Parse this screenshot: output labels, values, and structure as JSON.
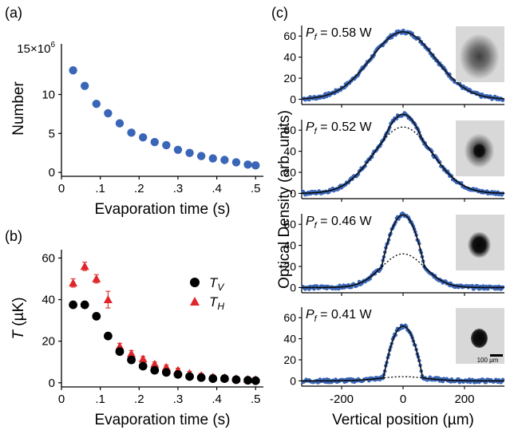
{
  "panel_labels": {
    "a": "(a)",
    "b": "(b)",
    "c": "(c)"
  },
  "colors": {
    "blue": "#3a66b8",
    "red": "#e0262a",
    "black": "#000000",
    "fit": "#111111",
    "image_bg": "#d8d8d8"
  },
  "chart_data": [
    {
      "id": "a",
      "type": "scatter",
      "xlabel": "Evaporation time (s)",
      "ylabel": "Number",
      "y_multiplier_label": "15×10",
      "y_multiplier_exp": "6",
      "xlim": [
        0,
        0.52
      ],
      "ylim": [
        -0.5,
        16.5
      ],
      "xticks": [
        0,
        0.1,
        0.2,
        0.3,
        0.4,
        0.5
      ],
      "xticklabels": [
        "0",
        ".1",
        ".2",
        ".3",
        ".4",
        ".5"
      ],
      "yticks": [
        0,
        5,
        10
      ],
      "yticklabels": [
        "0",
        "5",
        "10"
      ],
      "series": [
        {
          "color": "#3a66b8",
          "marker": "circle",
          "x": [
            0.03,
            0.06,
            0.09,
            0.12,
            0.15,
            0.18,
            0.21,
            0.24,
            0.27,
            0.3,
            0.33,
            0.36,
            0.39,
            0.42,
            0.45,
            0.48,
            0.5
          ],
          "y": [
            13.1,
            11.1,
            8.8,
            7.6,
            6.3,
            5.1,
            4.5,
            3.9,
            3.5,
            2.9,
            2.5,
            2.1,
            1.8,
            1.6,
            1.3,
            1.0,
            0.9
          ]
        }
      ]
    },
    {
      "id": "b",
      "type": "scatter",
      "xlabel": "Evaporation time (s)",
      "ylabel_main": "T",
      "ylabel_rest": " (µK)",
      "xlim": [
        0,
        0.52
      ],
      "ylim": [
        -2,
        64
      ],
      "xticks": [
        0,
        0.1,
        0.2,
        0.3,
        0.4,
        0.5
      ],
      "xticklabels": [
        "0",
        ".1",
        ".2",
        ".3",
        ".4",
        ".5"
      ],
      "yticks": [
        0,
        20,
        40,
        60
      ],
      "yticklabels": [
        "0",
        "20",
        "40",
        "60"
      ],
      "series": [
        {
          "name": "T",
          "sub": "V",
          "color": "#000000",
          "marker": "circle",
          "x": [
            0.03,
            0.06,
            0.09,
            0.12,
            0.15,
            0.18,
            0.21,
            0.24,
            0.27,
            0.3,
            0.33,
            0.36,
            0.39,
            0.42,
            0.45,
            0.48,
            0.5
          ],
          "y": [
            37.5,
            37.5,
            32,
            22.5,
            15,
            11,
            8,
            6,
            5,
            4,
            3,
            2.5,
            2,
            2,
            1.5,
            1.2,
            1
          ],
          "err": [
            0,
            0,
            0,
            0,
            0,
            0,
            0,
            0,
            0,
            0,
            0,
            0,
            0,
            0,
            0,
            0,
            0
          ]
        },
        {
          "name": "T",
          "sub": "H",
          "color": "#e0262a",
          "marker": "triangle",
          "x": [
            0.03,
            0.06,
            0.09,
            0.12,
            0.15,
            0.18,
            0.21,
            0.24,
            0.27,
            0.3,
            0.33,
            0.36,
            0.39,
            0.42,
            0.45,
            0.48,
            0.5
          ],
          "y": [
            48,
            56,
            50,
            40,
            17.5,
            14,
            11.5,
            9,
            7.5,
            6,
            4.5,
            3.5,
            2.8,
            2.5,
            2,
            1.6,
            1.5
          ],
          "err": [
            2,
            2,
            2,
            4,
            1.5,
            1.5,
            1.2,
            1,
            1,
            1,
            1,
            1,
            1,
            1,
            1,
            1,
            1
          ]
        }
      ]
    },
    {
      "id": "c",
      "type": "line",
      "xlabel": "Vertical position (µm)",
      "ylabel": "Optical Density (arb. units)",
      "xlim": [
        -330,
        330
      ],
      "ylim": [
        -5,
        70
      ],
      "xticks": [
        -200,
        0,
        200
      ],
      "xticklabels": [
        "-200",
        "0",
        "200"
      ],
      "yticks": [
        0,
        20,
        40,
        60
      ],
      "yticklabels": [
        "0",
        "20",
        "40",
        "60"
      ],
      "scalebar_label": "100 µm",
      "subpanels": [
        {
          "label_sym": "P",
          "label_sub": "f",
          "label_rest": " = 0.58 W",
          "peak": 64,
          "thermal_amp": 64,
          "thermal_sigma": 105,
          "bec_amp": 0,
          "bec_sigma": 40,
          "cloud_radius": 24,
          "cloud_core": 0
        },
        {
          "label_sym": "P",
          "label_sub": "f",
          "label_rest": " = 0.52 W",
          "peak": 75,
          "thermal_amp": 63,
          "thermal_sigma": 95,
          "bec_amp": 12,
          "bec_sigma": 32,
          "cloud_radius": 18,
          "cloud_core": 8
        },
        {
          "label_sym": "P",
          "label_sub": "f",
          "label_rest": " = 0.46 W",
          "peak": 69,
          "thermal_amp": 32,
          "thermal_sigma": 70,
          "bec_amp": 37,
          "bec_sigma": 35,
          "cloud_radius": 14,
          "cloud_core": 10
        },
        {
          "label_sym": "P",
          "label_sub": "f",
          "label_rest": " = 0.41 W",
          "peak": 52,
          "thermal_amp": 4,
          "thermal_sigma": 75,
          "bec_amp": 48,
          "bec_sigma": 32,
          "cloud_radius": 10,
          "cloud_core": 10
        }
      ]
    }
  ]
}
